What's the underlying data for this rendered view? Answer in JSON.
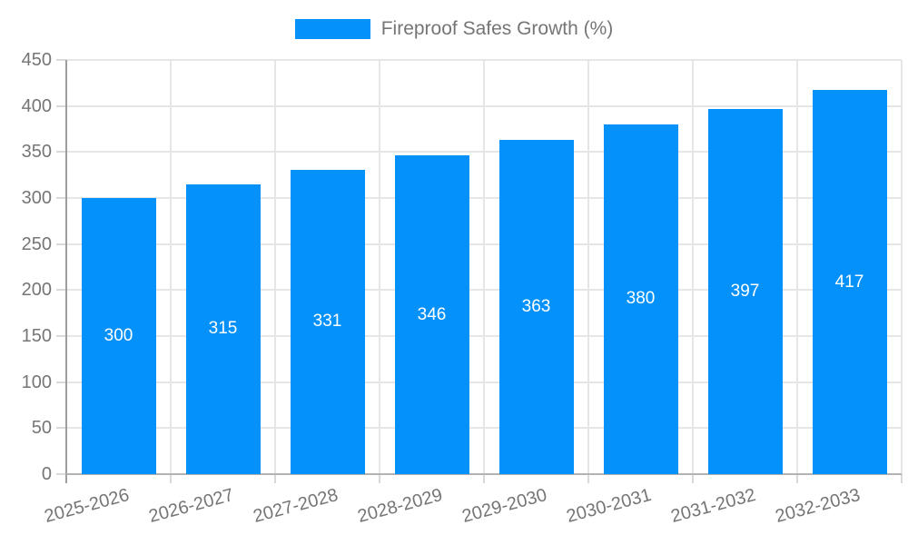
{
  "chart_data": {
    "type": "bar",
    "title": "Fireproof Safes Growth (%)",
    "legend": [
      "Fireproof Safes Growth (%)"
    ],
    "legend_position": "top-center",
    "categories": [
      "2025-2026",
      "2026-2027",
      "2027-2028",
      "2028-2029",
      "2029-2030",
      "2030-2031",
      "2031-2032",
      "2032-2033"
    ],
    "values": [
      300,
      315,
      331,
      346,
      363,
      380,
      397,
      417
    ],
    "value_labels_shown": true,
    "xlabel": "",
    "ylabel": "",
    "ylim": [
      0,
      450
    ],
    "ytick_step": 50,
    "yticks": [
      0,
      50,
      100,
      150,
      200,
      250,
      300,
      350,
      400,
      450
    ],
    "grid": true,
    "colors": {
      "bar": "#0591fa",
      "grid": "#e6e6e6",
      "axis_y": "#9e9e9e",
      "axis_x": "#b3b3b3",
      "tick": "#d9d9d9",
      "axis_text": "#757575",
      "legend_text": "#757575",
      "value_text": "#ffffff"
    }
  }
}
